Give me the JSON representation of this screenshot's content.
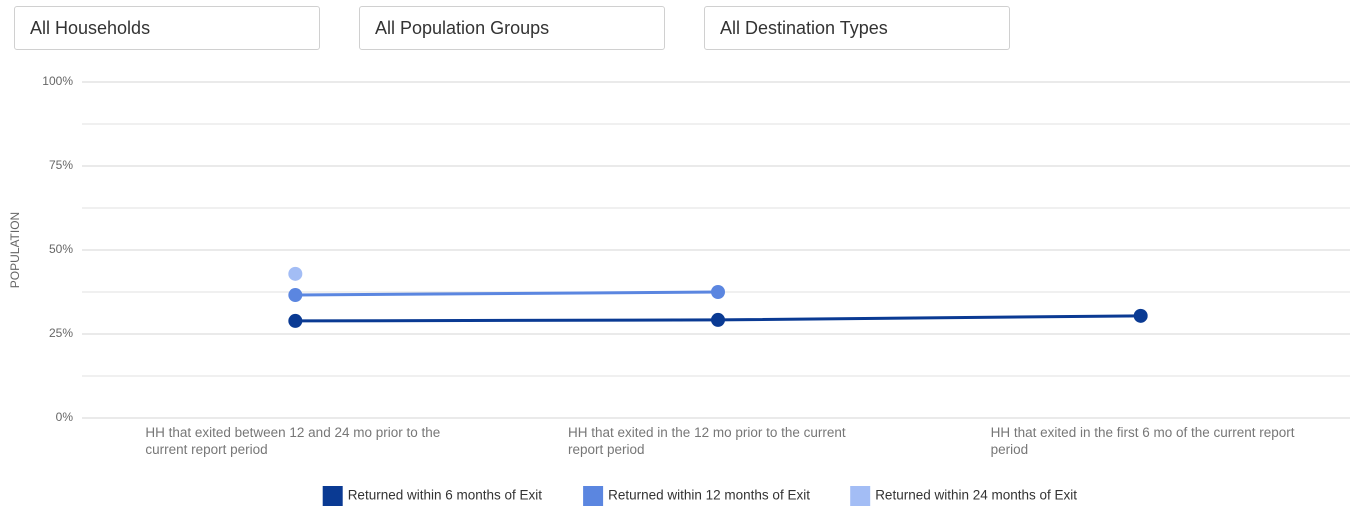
{
  "filters": [
    "All Households",
    "All Population Groups",
    "All Destination Types"
  ],
  "chart_data": {
    "type": "line",
    "ylabel": "POPULATION",
    "categories": [
      "HH that exited between 12 and 24 mo prior to the current report period",
      "HH that exited in the 12 mo prior to the current report period",
      "HH that exited in the first 6 mo of the current report period"
    ],
    "series": [
      {
        "name": "Returned within 6 months of Exit",
        "color": "#0a3a93",
        "values": [
          28.9,
          29.2,
          30.4
        ]
      },
      {
        "name": "Returned within 12 months of Exit",
        "color": "#5b86e0",
        "values": [
          36.6,
          37.5,
          null
        ]
      },
      {
        "name": "Returned within 24 months of Exit",
        "color": "#a3bdf5",
        "values": [
          42.9,
          null,
          null
        ]
      }
    ],
    "ylim": [
      0,
      100
    ],
    "yticks": [
      {
        "value": 0,
        "label": "0%"
      },
      {
        "value": 25,
        "label": "25%"
      },
      {
        "value": 50,
        "label": "50%"
      },
      {
        "value": 75,
        "label": "75%"
      },
      {
        "value": 100,
        "label": "100%"
      }
    ],
    "minor_yticks": [
      12.5,
      37.5,
      62.5,
      87.5
    ],
    "grid": true,
    "legend": "bottom"
  }
}
